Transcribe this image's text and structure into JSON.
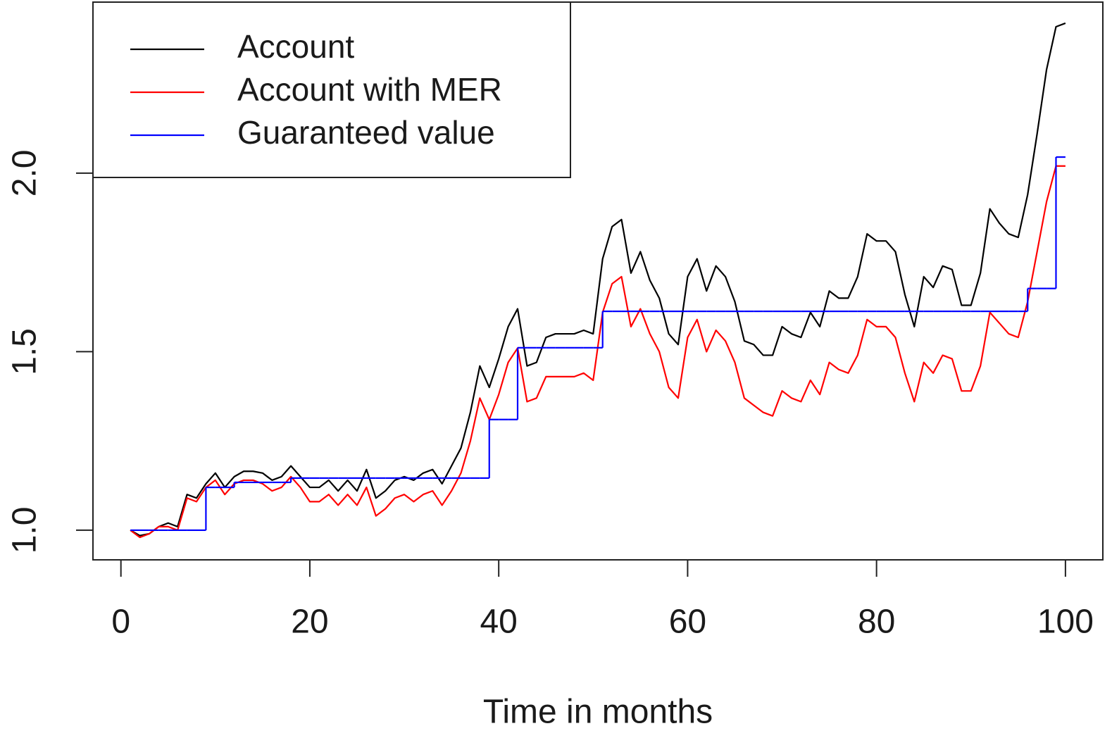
{
  "chart_data": {
    "type": "line",
    "x_label": "Time in months",
    "xlim": [
      -2.96,
      103.96
    ],
    "ylim": [
      0.917,
      2.479
    ],
    "xticks": [
      0,
      20,
      40,
      60,
      80,
      100
    ],
    "yticks": [
      {
        "value": 1,
        "label": "1.0"
      },
      1.5,
      {
        "value": 2,
        "label": "2.0"
      }
    ],
    "grid": false,
    "legend": "topleft",
    "x": [
      1,
      2,
      3,
      4,
      5,
      6,
      7,
      8,
      9,
      10,
      11,
      12,
      13,
      14,
      15,
      16,
      17,
      18,
      19,
      20,
      21,
      22,
      23,
      24,
      25,
      26,
      27,
      28,
      29,
      30,
      31,
      32,
      33,
      34,
      35,
      36,
      37,
      38,
      39,
      40,
      41,
      42,
      43,
      44,
      45,
      46,
      47,
      48,
      49,
      50,
      51,
      52,
      53,
      54,
      55,
      56,
      57,
      58,
      59,
      60,
      61,
      62,
      63,
      64,
      65,
      66,
      67,
      68,
      69,
      70,
      71,
      72,
      73,
      74,
      75,
      76,
      77,
      78,
      79,
      80,
      81,
      82,
      83,
      84,
      85,
      86,
      87,
      88,
      89,
      90,
      91,
      92,
      93,
      94,
      95,
      96,
      97,
      98,
      99,
      100
    ],
    "series": [
      {
        "name": "Account",
        "color": "#000000",
        "step": false,
        "values": [
          1.0,
          0.985,
          0.99,
          1.01,
          1.02,
          1.01,
          1.1,
          1.09,
          1.13,
          1.16,
          1.12,
          1.15,
          1.165,
          1.165,
          1.16,
          1.14,
          1.15,
          1.18,
          1.15,
          1.12,
          1.12,
          1.14,
          1.11,
          1.14,
          1.11,
          1.17,
          1.09,
          1.11,
          1.14,
          1.15,
          1.14,
          1.16,
          1.17,
          1.13,
          1.18,
          1.23,
          1.33,
          1.46,
          1.4,
          1.48,
          1.57,
          1.62,
          1.46,
          1.47,
          1.54,
          1.55,
          1.55,
          1.55,
          1.56,
          1.55,
          1.76,
          1.85,
          1.87,
          1.72,
          1.78,
          1.7,
          1.65,
          1.55,
          1.52,
          1.71,
          1.76,
          1.67,
          1.74,
          1.71,
          1.64,
          1.53,
          1.52,
          1.49,
          1.49,
          1.57,
          1.55,
          1.54,
          1.61,
          1.57,
          1.67,
          1.65,
          1.65,
          1.71,
          1.83,
          1.81,
          1.81,
          1.78,
          1.66,
          1.57,
          1.71,
          1.68,
          1.74,
          1.73,
          1.63,
          1.63,
          1.72,
          1.9,
          1.86,
          1.83,
          1.82,
          1.94,
          2.11,
          2.29,
          2.41,
          2.42
        ]
      },
      {
        "name": "Account with MER",
        "color": "#ff0000",
        "step": false,
        "values": [
          1.0,
          0.98,
          0.99,
          1.01,
          1.01,
          1.0,
          1.09,
          1.08,
          1.12,
          1.14,
          1.1,
          1.13,
          1.14,
          1.14,
          1.13,
          1.11,
          1.12,
          1.15,
          1.12,
          1.08,
          1.08,
          1.1,
          1.07,
          1.1,
          1.07,
          1.12,
          1.04,
          1.06,
          1.09,
          1.1,
          1.08,
          1.1,
          1.11,
          1.07,
          1.11,
          1.16,
          1.25,
          1.37,
          1.31,
          1.38,
          1.47,
          1.51,
          1.36,
          1.37,
          1.43,
          1.43,
          1.43,
          1.43,
          1.44,
          1.42,
          1.61,
          1.69,
          1.71,
          1.57,
          1.62,
          1.55,
          1.5,
          1.4,
          1.37,
          1.54,
          1.59,
          1.5,
          1.56,
          1.53,
          1.47,
          1.37,
          1.35,
          1.33,
          1.32,
          1.39,
          1.37,
          1.36,
          1.42,
          1.38,
          1.47,
          1.45,
          1.44,
          1.49,
          1.59,
          1.57,
          1.57,
          1.54,
          1.44,
          1.36,
          1.47,
          1.44,
          1.49,
          1.48,
          1.39,
          1.39,
          1.46,
          1.61,
          1.58,
          1.55,
          1.54,
          1.64,
          1.78,
          1.92,
          2.02,
          2.02
        ]
      },
      {
        "name": "Guaranteed value",
        "color": "#0000ff",
        "step": true,
        "values": [
          1.0,
          1.0,
          1.0,
          1.0,
          1.0,
          1.0,
          1.0,
          1.0,
          1.12,
          1.12,
          1.12,
          1.134,
          1.134,
          1.134,
          1.134,
          1.134,
          1.134,
          1.146,
          1.146,
          1.146,
          1.146,
          1.146,
          1.146,
          1.146,
          1.146,
          1.146,
          1.146,
          1.146,
          1.146,
          1.146,
          1.146,
          1.146,
          1.146,
          1.146,
          1.146,
          1.146,
          1.146,
          1.146,
          1.31,
          1.31,
          1.31,
          1.511,
          1.511,
          1.511,
          1.511,
          1.511,
          1.511,
          1.511,
          1.511,
          1.511,
          1.613,
          1.613,
          1.613,
          1.613,
          1.613,
          1.613,
          1.613,
          1.613,
          1.613,
          1.613,
          1.613,
          1.613,
          1.613,
          1.613,
          1.613,
          1.613,
          1.613,
          1.613,
          1.613,
          1.613,
          1.613,
          1.613,
          1.613,
          1.613,
          1.613,
          1.613,
          1.613,
          1.613,
          1.613,
          1.613,
          1.613,
          1.613,
          1.613,
          1.613,
          1.613,
          1.613,
          1.613,
          1.613,
          1.613,
          1.613,
          1.613,
          1.613,
          1.613,
          1.613,
          1.613,
          1.677,
          1.677,
          1.677,
          2.045,
          2.045
        ]
      }
    ]
  }
}
